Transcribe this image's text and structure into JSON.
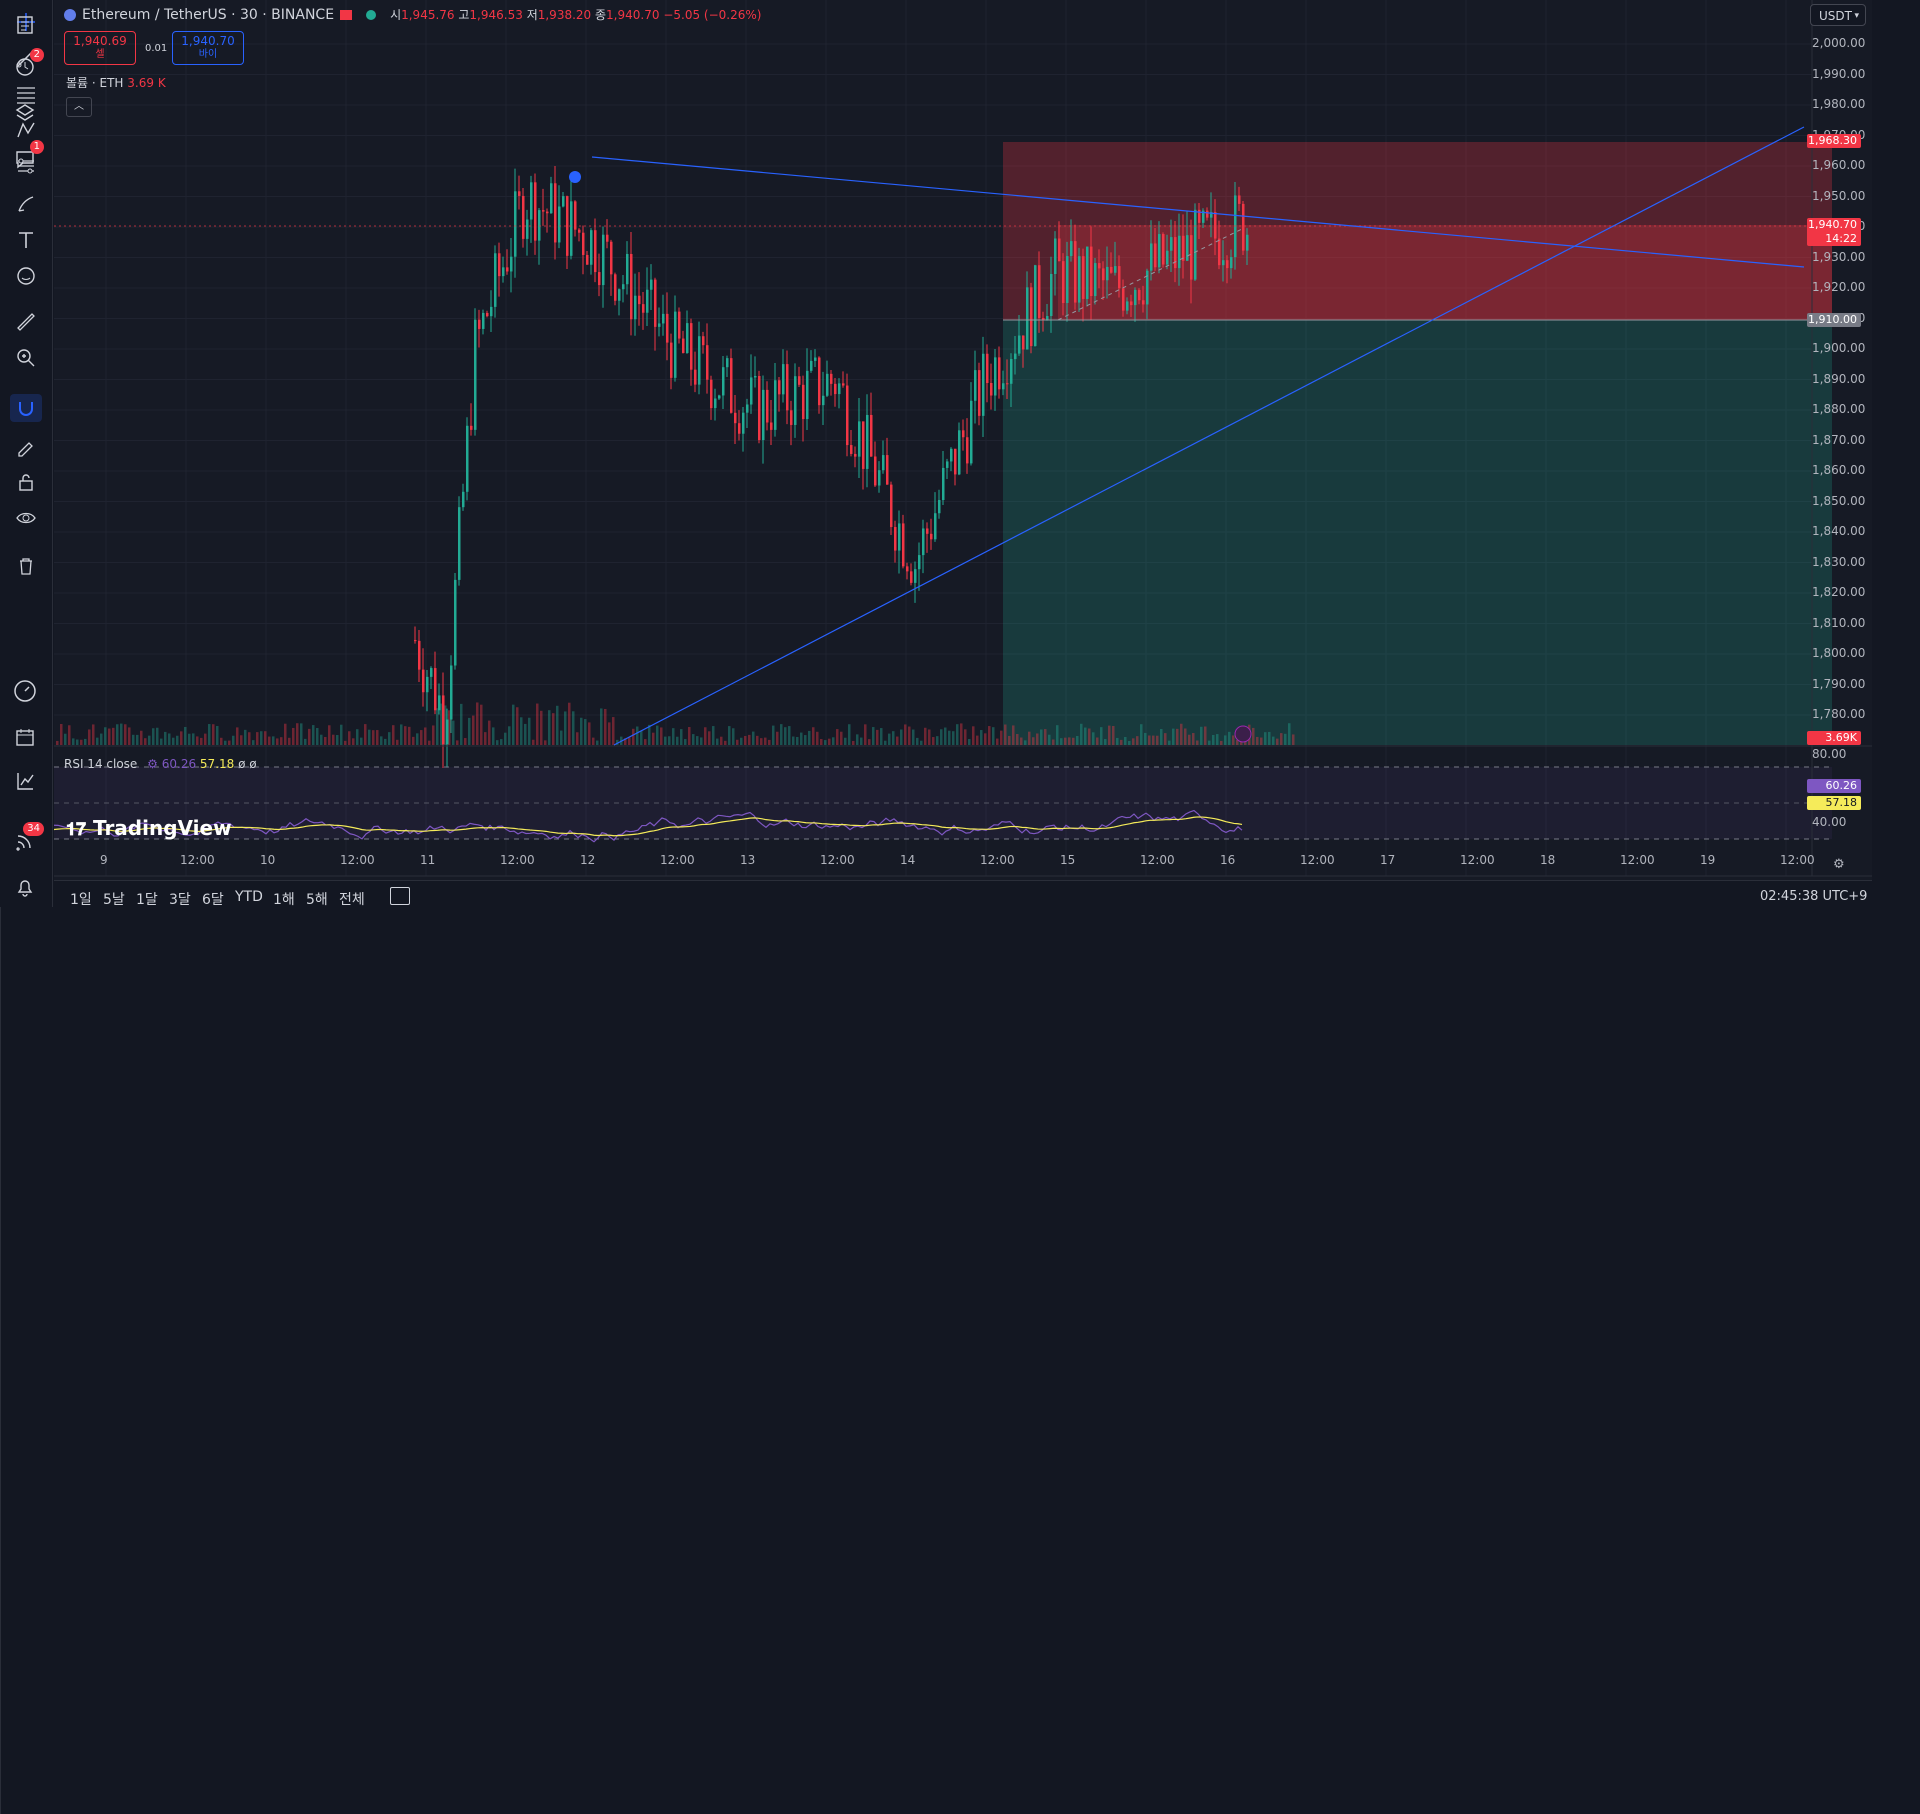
{
  "symbol": {
    "name": "Ethereum / TetherUS · 30 · BINANCE",
    "open_label": "시",
    "open": "1,945.76",
    "high_label": "고",
    "high": "1,946.53",
    "low_label": "저",
    "low": "1,938.20",
    "close_label": "종",
    "close": "1,940.70",
    "change": "−5.05 (−0.26%)"
  },
  "trade": {
    "sell_price": "1,940.69",
    "sell_label": "셀",
    "spread": "0.01",
    "buy_price": "1,940.70",
    "buy_label": "바이"
  },
  "volume": {
    "label": "볼륨 · ETH",
    "value": "3.69 K"
  },
  "currency": "USDT",
  "price_axis": [
    "2,000.00",
    "1,990.00",
    "1,980.00",
    "1,970.00",
    "1,960.00",
    "1,950.00",
    "1,940.00",
    "1,930.00",
    "1,920.00",
    "1,910.00",
    "1,900.00",
    "1,890.00",
    "1,880.00",
    "1,870.00",
    "1,860.00",
    "1,850.00",
    "1,840.00",
    "1,830.00",
    "1,820.00",
    "1,810.00",
    "1,800.00",
    "1,790.00",
    "1,780.00"
  ],
  "price_tags": {
    "target": "1,968.30",
    "current": "1,940.70",
    "countdown": "14:22",
    "entry": "1,910.00",
    "volume": "3.69K"
  },
  "rsi": {
    "label": "RSI 14 close",
    "value": "60.26",
    "ma": "57.18",
    "extra": "ø ø",
    "axis": [
      "80.00",
      "40.00"
    ],
    "tag_value": "60.26",
    "tag_ma": "57.18"
  },
  "time_axis": [
    "9",
    "12:00",
    "10",
    "12:00",
    "11",
    "12:00",
    "12",
    "12:00",
    "13",
    "12:00",
    "14",
    "12:00",
    "15",
    "12:00",
    "16",
    "12:00",
    "17",
    "12:00",
    "18",
    "12:00",
    "19",
    "12:00"
  ],
  "ranges": [
    "1일",
    "5날",
    "1달",
    "3달",
    "6달",
    "YTD",
    "1해",
    "5해",
    "전체"
  ],
  "clock": "02:45:38 UTC+9",
  "brand": "TradingView",
  "right_badges": {
    "alerts": "2",
    "chat": "1",
    "ideas": "34"
  },
  "colors": {
    "up": "#22ab94",
    "down": "#f23645",
    "bg": "#131722",
    "line": "#2962ff",
    "rsi": "#7e57c2",
    "rsi_ma": "#f5eb5a"
  }
}
